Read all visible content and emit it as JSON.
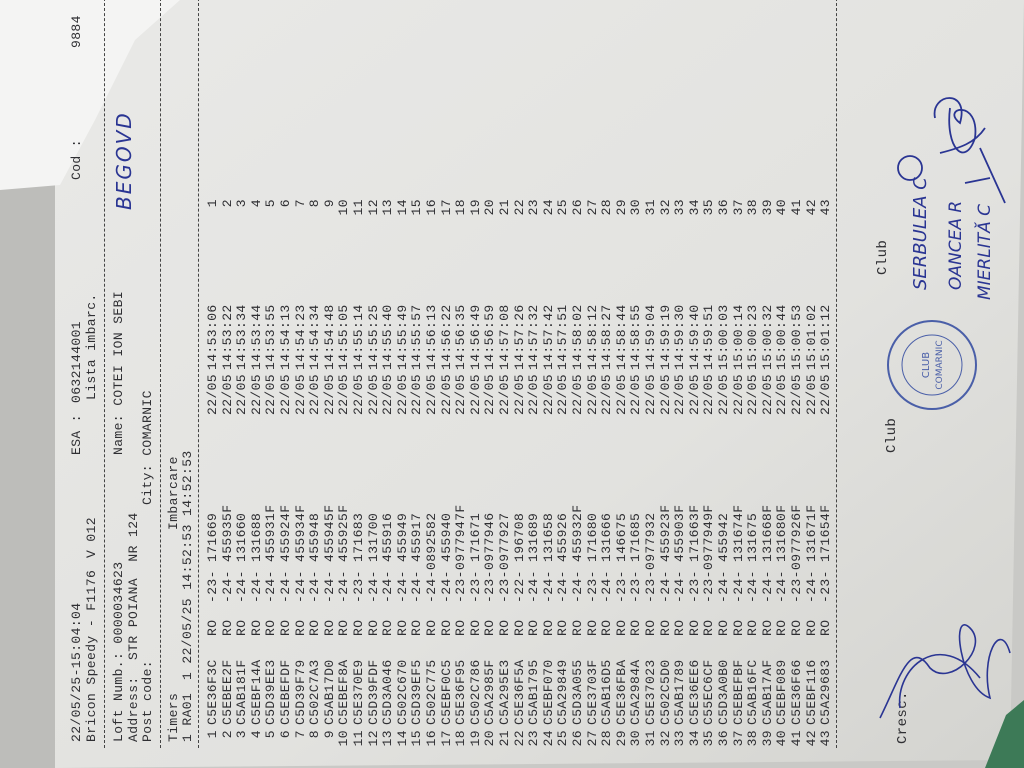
{
  "header": {
    "datetime": "22/05/25-15:04:04",
    "esa_label": "ESA :",
    "esa_value": "0632144001",
    "cod_label": "Cod :",
    "cod_value": "9884",
    "device": "Bricon Speedy - F1176",
    "version": "V 012",
    "list_title": "Lista imbarc."
  },
  "fancier": {
    "loft_label": "Loft Numb.: 0000034623",
    "name_label": "Name: COTEI ION SEBI",
    "address_label": "Address:  STR POIANA  NR 124",
    "post_label": "Post code:",
    "city_label": "City: COMARNIC",
    "handwritten_note": "BEGOVD"
  },
  "timers": {
    "label": "Timers",
    "imbarcare_label": "Imbarcare",
    "timer_line": "1 RA01",
    "timer_values": "1 22/05/25 14:52:53 14:52:53"
  },
  "rows": [
    {
      "n": "1",
      "ring": "C5E36F3C",
      "country": "RO",
      "age": "-23-",
      "number": "171669",
      "date": "22/05",
      "time": "14:53:06",
      "rank": "1"
    },
    {
      "n": "2",
      "ring": "C5EBEE2F",
      "country": "RO",
      "age": "-24-",
      "number": "455935F",
      "date": "22/05",
      "time": "14:53:22",
      "rank": "2"
    },
    {
      "n": "3",
      "ring": "C5AB181F",
      "country": "RO",
      "age": "-24-",
      "number": "131660",
      "date": "22/05",
      "time": "14:53:34",
      "rank": "3"
    },
    {
      "n": "4",
      "ring": "C5EBF14A",
      "country": "RO",
      "age": "-24-",
      "number": "131688",
      "date": "22/05",
      "time": "14:53:44",
      "rank": "4"
    },
    {
      "n": "5",
      "ring": "C5D39EE3",
      "country": "RO",
      "age": "-24-",
      "number": "455931F",
      "date": "22/05",
      "time": "14:53:55",
      "rank": "5"
    },
    {
      "n": "6",
      "ring": "C5EBEFDF",
      "country": "RO",
      "age": "-24-",
      "number": "455924F",
      "date": "22/05",
      "time": "14:54:13",
      "rank": "6"
    },
    {
      "n": "7",
      "ring": "C5D39F79",
      "country": "RO",
      "age": "-24-",
      "number": "455934F",
      "date": "22/05",
      "time": "14:54:23",
      "rank": "7"
    },
    {
      "n": "8",
      "ring": "C502C7A3",
      "country": "RO",
      "age": "-24-",
      "number": "455948",
      "date": "22/05",
      "time": "14:54:34",
      "rank": "8"
    },
    {
      "n": "9",
      "ring": "C5AB17D0",
      "country": "RO",
      "age": "-24-",
      "number": "455945F",
      "date": "22/05",
      "time": "14:54:48",
      "rank": "9"
    },
    {
      "n": "10",
      "ring": "C5EBEF8A",
      "country": "RO",
      "age": "-24-",
      "number": "455925F",
      "date": "22/05",
      "time": "14:55:05",
      "rank": "10"
    },
    {
      "n": "11",
      "ring": "C5E370E9",
      "country": "RO",
      "age": "-23-",
      "number": "171683",
      "date": "22/05",
      "time": "14:55:14",
      "rank": "11"
    },
    {
      "n": "12",
      "ring": "C5D39FDF",
      "country": "RO",
      "age": "-24-",
      "number": "131700",
      "date": "22/05",
      "time": "14:55:25",
      "rank": "12"
    },
    {
      "n": "13",
      "ring": "C5D3A046",
      "country": "RO",
      "age": "-24-",
      "number": "455916",
      "date": "22/05",
      "time": "14:55:40",
      "rank": "13"
    },
    {
      "n": "14",
      "ring": "C502C670",
      "country": "RO",
      "age": "-24-",
      "number": "455949",
      "date": "22/05",
      "time": "14:55:49",
      "rank": "14"
    },
    {
      "n": "15",
      "ring": "C5D39EF5",
      "country": "RO",
      "age": "-24-",
      "number": "455917",
      "date": "22/05",
      "time": "14:55:57",
      "rank": "15"
    },
    {
      "n": "16",
      "ring": "C502C775",
      "country": "RO",
      "age": "-24-",
      "number": "0892582",
      "date": "22/05",
      "time": "14:56:13",
      "rank": "16"
    },
    {
      "n": "17",
      "ring": "C5EBF0C5",
      "country": "RO",
      "age": "-24-",
      "number": "455940",
      "date": "22/05",
      "time": "14:56:22",
      "rank": "17"
    },
    {
      "n": "18",
      "ring": "C5E36F95",
      "country": "RO",
      "age": "-23-",
      "number": "0977947F",
      "date": "22/05",
      "time": "14:56:35",
      "rank": "18"
    },
    {
      "n": "19",
      "ring": "C502C786",
      "country": "RO",
      "age": "-23-",
      "number": "171671",
      "date": "22/05",
      "time": "14:56:49",
      "rank": "19"
    },
    {
      "n": "20",
      "ring": "C5A2985F",
      "country": "RO",
      "age": "-23-",
      "number": "0977946",
      "date": "22/05",
      "time": "14:56:59",
      "rank": "20"
    },
    {
      "n": "21",
      "ring": "C5A295E3",
      "country": "RO",
      "age": "-23-",
      "number": "0977927",
      "date": "22/05",
      "time": "14:57:08",
      "rank": "21"
    },
    {
      "n": "22",
      "ring": "C5E36F5A",
      "country": "RO",
      "age": "-22-",
      "number": "196708",
      "date": "22/05",
      "time": "14:57:26",
      "rank": "22"
    },
    {
      "n": "23",
      "ring": "C5AB1795",
      "country": "RO",
      "age": "-24-",
      "number": "131689",
      "date": "22/05",
      "time": "14:57:32",
      "rank": "23"
    },
    {
      "n": "24",
      "ring": "C5EBF070",
      "country": "RO",
      "age": "-24-",
      "number": "131658",
      "date": "22/05",
      "time": "14:57:42",
      "rank": "24"
    },
    {
      "n": "25",
      "ring": "C5A29849",
      "country": "RO",
      "age": "-24-",
      "number": "455926",
      "date": "22/05",
      "time": "14:57:51",
      "rank": "25"
    },
    {
      "n": "26",
      "ring": "C5D3A055",
      "country": "RO",
      "age": "-24-",
      "number": "455932F",
      "date": "22/05",
      "time": "14:58:02",
      "rank": "26"
    },
    {
      "n": "27",
      "ring": "C5E3703F",
      "country": "RO",
      "age": "-23-",
      "number": "171680",
      "date": "22/05",
      "time": "14:58:12",
      "rank": "27"
    },
    {
      "n": "28",
      "ring": "C5AB16D5",
      "country": "RO",
      "age": "-24-",
      "number": "131666",
      "date": "22/05",
      "time": "14:58:27",
      "rank": "28"
    },
    {
      "n": "29",
      "ring": "C5E36FBA",
      "country": "RO",
      "age": "-23-",
      "number": "146675",
      "date": "22/05",
      "time": "14:58:44",
      "rank": "29"
    },
    {
      "n": "30",
      "ring": "C5A2984A",
      "country": "RO",
      "age": "-23-",
      "number": "171685",
      "date": "22/05",
      "time": "14:58:55",
      "rank": "30"
    },
    {
      "n": "31",
      "ring": "C5E37023",
      "country": "RO",
      "age": "-23-",
      "number": "0977932",
      "date": "22/05",
      "time": "14:59:04",
      "rank": "31"
    },
    {
      "n": "32",
      "ring": "C502C5D0",
      "country": "RO",
      "age": "-24-",
      "number": "455923F",
      "date": "22/05",
      "time": "14:59:19",
      "rank": "32"
    },
    {
      "n": "33",
      "ring": "C5AB1789",
      "country": "RO",
      "age": "-24-",
      "number": "455903F",
      "date": "22/05",
      "time": "14:59:30",
      "rank": "33"
    },
    {
      "n": "34",
      "ring": "C5E36EE6",
      "country": "RO",
      "age": "-23-",
      "number": "171663F",
      "date": "22/05",
      "time": "14:59:40",
      "rank": "34"
    },
    {
      "n": "35",
      "ring": "C55EC6CF",
      "country": "RO",
      "age": "-23-",
      "number": "0977949F",
      "date": "22/05",
      "time": "14:59:51",
      "rank": "35"
    },
    {
      "n": "36",
      "ring": "C5D3A0B0",
      "country": "RO",
      "age": "-24-",
      "number": "455942",
      "date": "22/05",
      "time": "15:00:03",
      "rank": "36"
    },
    {
      "n": "37",
      "ring": "C5EBEFBF",
      "country": "RO",
      "age": "-24-",
      "number": "131674F",
      "date": "22/05",
      "time": "15:00:14",
      "rank": "37"
    },
    {
      "n": "38",
      "ring": "C5AB16FC",
      "country": "RO",
      "age": "-24-",
      "number": "131675",
      "date": "22/05",
      "time": "15:00:23",
      "rank": "38"
    },
    {
      "n": "39",
      "ring": "C5AB17AF",
      "country": "RO",
      "age": "-24-",
      "number": "131668F",
      "date": "22/05",
      "time": "15:00:32",
      "rank": "39"
    },
    {
      "n": "40",
      "ring": "C5EBF089",
      "country": "RO",
      "age": "-24-",
      "number": "131680F",
      "date": "22/05",
      "time": "15:00:44",
      "rank": "40"
    },
    {
      "n": "41",
      "ring": "C5E36F66",
      "country": "RO",
      "age": "-23-",
      "number": "0977926F",
      "date": "22/05",
      "time": "15:00:53",
      "rank": "41"
    },
    {
      "n": "42",
      "ring": "C5EBF116",
      "country": "RO",
      "age": "-24-",
      "number": "131671F",
      "date": "22/05",
      "time": "15:01:02",
      "rank": "42"
    },
    {
      "n": "43",
      "ring": "C5A29683",
      "country": "RO",
      "age": "-23-",
      "number": "171654F",
      "date": "22/05",
      "time": "15:01:12",
      "rank": "43"
    }
  ],
  "footer": {
    "cresc_label": "Cresc.",
    "club_label_1": "Club",
    "club_label_2": "Club",
    "signatory_1": "SERBULEA C",
    "signatory_2": "OANCEA R",
    "signatory_3": "MIERLITĂ C"
  },
  "stamp": {
    "center_text_1": "CLUB",
    "center_text_2": "COMARNIC",
    "ring_text": "FEDERATIA CRESCATORILOR DE PORUMBEI DIN ROMANIA"
  },
  "colors": {
    "ink": "#2f2f33",
    "pen": "#2a3593",
    "stamp": "#4a5fa8",
    "paper": "#e4e4e1"
  }
}
